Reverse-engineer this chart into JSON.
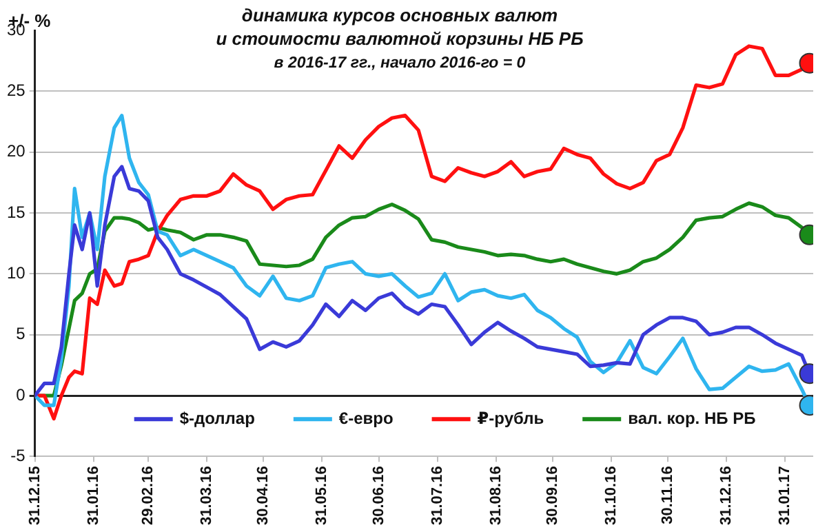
{
  "chart_data": {
    "type": "line",
    "title": "динамика курсов основных валют\nи стоимости валютной корзины НБ РБ",
    "subtitle": "в 2016-17 гг., начало 2016-го = 0",
    "ylabel": "+/- %",
    "x": [
      "2015-12-31",
      "2016-01-05",
      "2016-01-10",
      "2016-01-14",
      "2016-01-18",
      "2016-01-21",
      "2016-01-25",
      "2016-01-29",
      "2016-02-02",
      "2016-02-06",
      "2016-02-11",
      "2016-02-15",
      "2016-02-19",
      "2016-02-24",
      "2016-02-29",
      "2016-03-05",
      "2016-03-10",
      "2016-03-17",
      "2016-03-24",
      "2016-03-31",
      "2016-04-07",
      "2016-04-14",
      "2016-04-21",
      "2016-04-28",
      "2016-05-05",
      "2016-05-12",
      "2016-05-19",
      "2016-05-26",
      "2016-06-02",
      "2016-06-09",
      "2016-06-16",
      "2016-06-23",
      "2016-06-30",
      "2016-07-07",
      "2016-07-14",
      "2016-07-21",
      "2016-07-28",
      "2016-08-04",
      "2016-08-11",
      "2016-08-18",
      "2016-08-25",
      "2016-09-01",
      "2016-09-08",
      "2016-09-15",
      "2016-09-22",
      "2016-09-29",
      "2016-10-06",
      "2016-10-13",
      "2016-10-20",
      "2016-10-27",
      "2016-11-03",
      "2016-11-10",
      "2016-11-17",
      "2016-11-24",
      "2016-12-01",
      "2016-12-08",
      "2016-12-15",
      "2016-12-22",
      "2016-12-29",
      "2017-01-05",
      "2017-01-12",
      "2017-01-19",
      "2017-01-26",
      "2017-02-02",
      "2017-02-09",
      "2017-02-13"
    ],
    "series": [
      {
        "name": "$-доллар",
        "color": "#3a3ad8",
        "values": [
          0,
          1.0,
          1.0,
          4,
          10,
          14,
          12,
          15,
          9,
          14,
          18,
          18.8,
          17,
          16.8,
          16,
          13,
          12,
          10,
          9.5,
          8.9,
          8.3,
          7.3,
          6.3,
          3.8,
          4.4,
          4,
          4.5,
          5.8,
          7.5,
          6.5,
          7.8,
          7.0,
          8.0,
          8.4,
          7.3,
          6.7,
          7.5,
          7.3,
          5.8,
          4.2,
          5.2,
          6.0,
          5.3,
          4.7,
          4.0,
          3.8,
          3.6,
          3.4,
          2.4,
          2.5,
          2.7,
          2.6,
          5.0,
          5.8,
          6.4,
          6.4,
          6.1,
          5.0,
          5.2,
          5.6,
          5.6,
          5.0,
          4.3,
          3.8,
          3.3,
          1.8
        ]
      },
      {
        "name": "€-евро",
        "color": "#2fb5ef",
        "values": [
          0,
          -0.8,
          -0.8,
          3,
          9,
          17,
          13,
          15,
          12,
          18,
          22,
          23,
          19.5,
          17.5,
          16.5,
          13.5,
          13.2,
          11.5,
          12,
          11.5,
          11,
          10.5,
          9.0,
          8.2,
          9.8,
          8.0,
          7.8,
          8.2,
          10.5,
          10.8,
          11.0,
          10.0,
          9.8,
          10.0,
          9.0,
          8.1,
          8.4,
          10.0,
          7.8,
          8.5,
          8.7,
          8.2,
          8.0,
          8.3,
          7.0,
          6.4,
          5.5,
          4.8,
          2.8,
          1.9,
          2.7,
          4.5,
          2.3,
          1.8,
          3.2,
          4.7,
          2.2,
          0.5,
          0.6,
          1.5,
          2.4,
          2.0,
          2.1,
          2.6,
          0.5,
          -0.8
        ]
      },
      {
        "name": "₽-рубль",
        "color": "#ff1010",
        "values": [
          0,
          0,
          -1.9,
          0,
          1.5,
          2.0,
          1.8,
          8.0,
          7.5,
          10.3,
          9.0,
          9.2,
          11.0,
          11.2,
          11.5,
          13.5,
          14.8,
          16.1,
          16.4,
          16.4,
          16.8,
          18.2,
          17.3,
          16.8,
          15.3,
          16.1,
          16.4,
          16.5,
          18.5,
          20.5,
          19.5,
          21.0,
          22.1,
          22.8,
          23.0,
          21.8,
          18.0,
          17.6,
          18.7,
          18.3,
          18.0,
          18.4,
          19.2,
          18.0,
          18.4,
          18.6,
          20.3,
          19.8,
          19.5,
          18.2,
          17.4,
          17.0,
          17.5,
          19.3,
          19.8,
          22.0,
          25.5,
          25.3,
          25.6,
          28.0,
          28.7,
          28.5,
          26.3,
          26.3,
          26.8,
          27.3
        ]
      },
      {
        "name": "вал. кор. НБ РБ",
        "color": "#1a8a1a",
        "values": [
          0,
          0,
          0,
          2.5,
          5.5,
          7.8,
          8.4,
          10.0,
          10.4,
          13.5,
          14.6,
          14.6,
          14.5,
          14.2,
          13.6,
          13.8,
          13.6,
          13.4,
          12.8,
          13.2,
          13.2,
          13.0,
          12.7,
          10.8,
          10.7,
          10.6,
          10.7,
          11.2,
          13.0,
          14.0,
          14.6,
          14.7,
          15.3,
          15.7,
          15.2,
          14.5,
          12.8,
          12.6,
          12.2,
          12.0,
          11.8,
          11.5,
          11.6,
          11.5,
          11.2,
          11.0,
          11.2,
          10.8,
          10.5,
          10.2,
          10.0,
          10.3,
          11.0,
          11.3,
          12.0,
          13.0,
          14.4,
          14.6,
          14.7,
          15.3,
          15.8,
          15.5,
          14.8,
          14.6,
          13.8,
          13.2
        ]
      }
    ],
    "xlim": [
      "2015-12-31",
      "2017-02-15"
    ],
    "xticks": [
      {
        "value": "2015-12-31",
        "label": "31.12.15"
      },
      {
        "value": "2016-01-31",
        "label": "31.01.16"
      },
      {
        "value": "2016-02-29",
        "label": "29.02.16"
      },
      {
        "value": "2016-03-31",
        "label": "31.03.16"
      },
      {
        "value": "2016-04-30",
        "label": "30.04.16"
      },
      {
        "value": "2016-05-31",
        "label": "31.05.16"
      },
      {
        "value": "2016-06-30",
        "label": "30.06.16"
      },
      {
        "value": "2016-07-31",
        "label": "31.07.16"
      },
      {
        "value": "2016-08-31",
        "label": "31.08.16"
      },
      {
        "value": "2016-09-30",
        "label": "30.09.16"
      },
      {
        "value": "2016-10-31",
        "label": "31.10.16"
      },
      {
        "value": "2016-11-30",
        "label": "30.11.16"
      },
      {
        "value": "2016-12-31",
        "label": "31.12.16"
      },
      {
        "value": "2017-01-31",
        "label": "31.01.17"
      }
    ],
    "ylim": [
      -5,
      30
    ],
    "yticks": [
      -5,
      0,
      5,
      10,
      15,
      20,
      25,
      30
    ],
    "grid": "y",
    "legend": "bottom",
    "line_style": "solid"
  }
}
